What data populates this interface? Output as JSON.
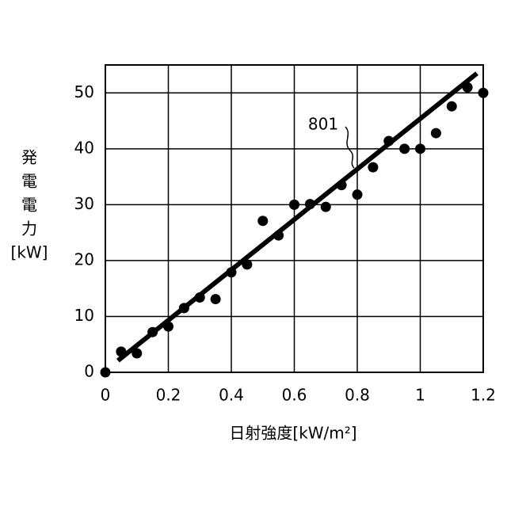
{
  "chart_data": {
    "type": "scatter",
    "xlabel": "日射強度[kW/m²]",
    "ylabel": [
      "発",
      "電",
      "電",
      "力",
      "[kW]"
    ],
    "annotation": "801",
    "x": [
      0,
      0.05,
      0.1,
      0.15,
      0.2,
      0.25,
      0.3,
      0.35,
      0.4,
      0.45,
      0.5,
      0.55,
      0.6,
      0.65,
      0.7,
      0.75,
      0.8,
      0.85,
      0.9,
      0.95,
      1.0,
      1.05,
      1.1,
      1.15,
      1.2
    ],
    "values": [
      0,
      3.7,
      3.4,
      7.2,
      8.2,
      11.5,
      13.4,
      13.1,
      17.9,
      19.3,
      27.1,
      24.5,
      30,
      30.1,
      29.6,
      33.5,
      31.8,
      36.7,
      41.4,
      40,
      40,
      42.8,
      47.6,
      51,
      50
    ],
    "color": "#000000",
    "fit_line": {
      "x": [
        0.04,
        1.18
      ],
      "values": [
        2.1,
        53.5
      ]
    },
    "xlim": [
      0,
      1.2
    ],
    "ylim": [
      0,
      55
    ],
    "xticks": [
      0,
      0.2,
      0.4,
      0.6,
      0.8,
      1,
      1.2
    ],
    "yticks": [
      0,
      10,
      20,
      30,
      40,
      50
    ],
    "grid": true
  }
}
